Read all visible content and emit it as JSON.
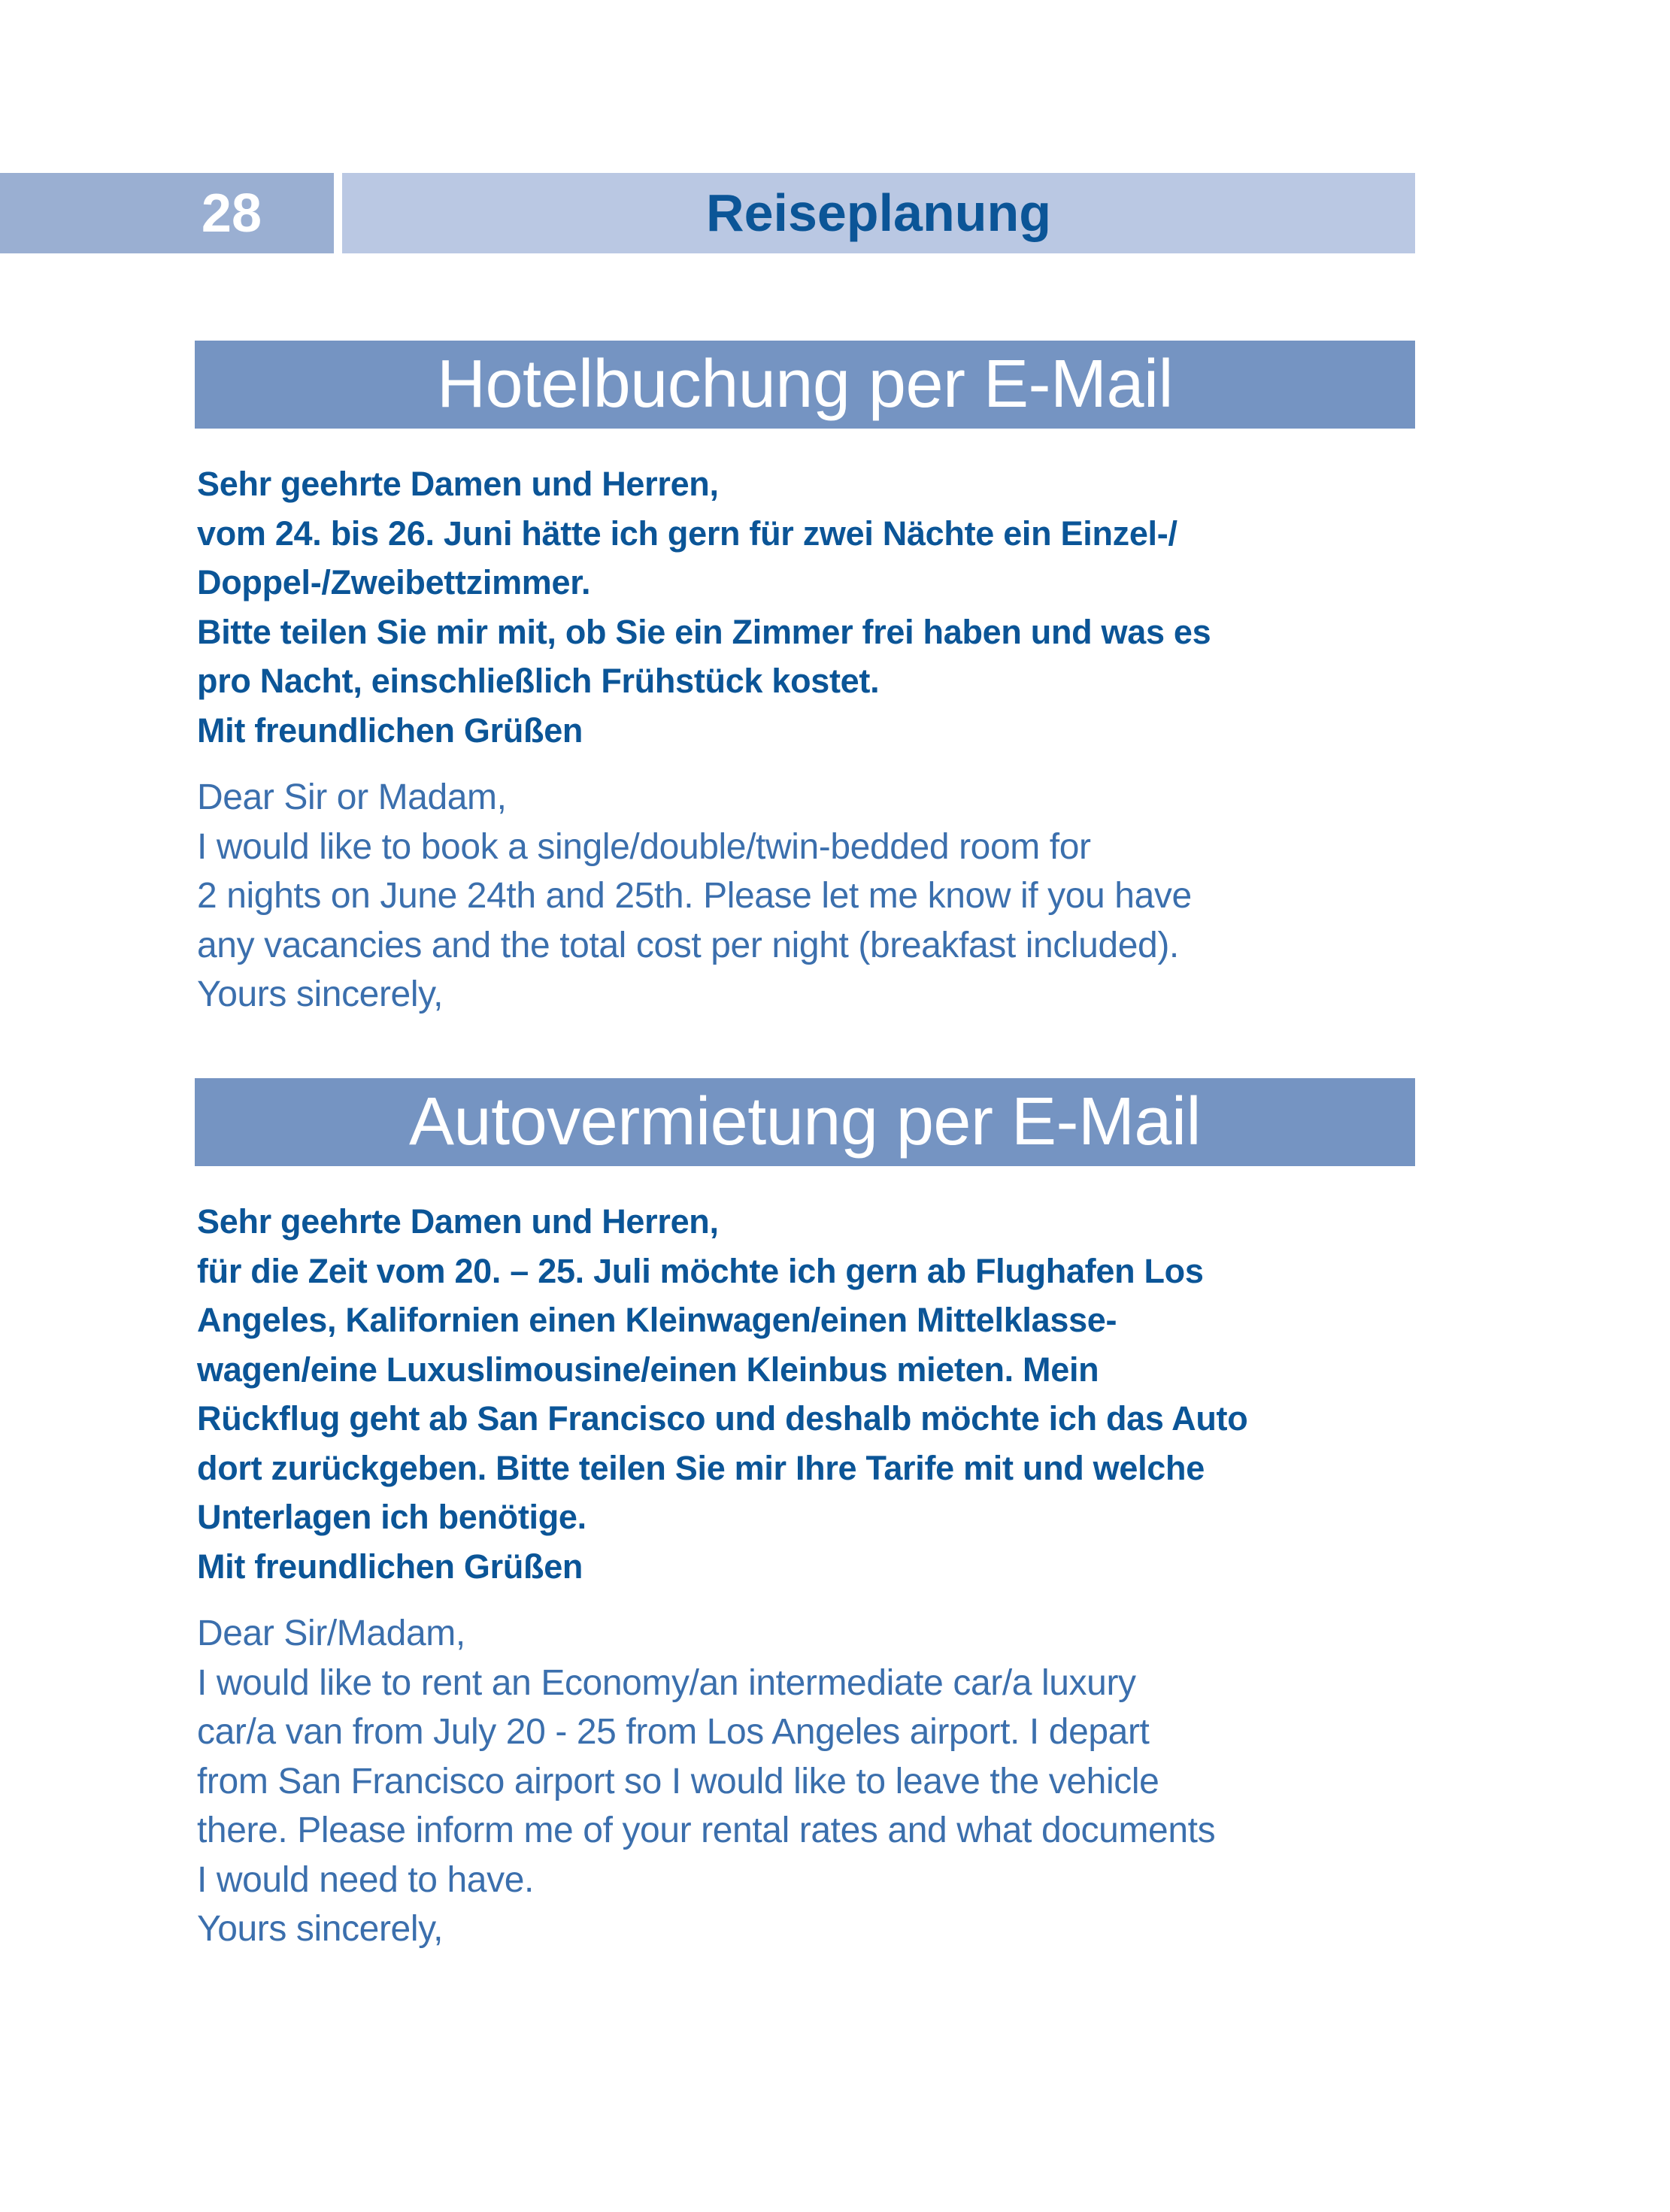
{
  "header": {
    "page_number": "28",
    "chapter": "Reiseplanung"
  },
  "colors": {
    "dark_blue_text": "#0b5597",
    "light_blue_text": "#3b6fad",
    "title_bar": "#7594c2",
    "header_light": "#bac8e3",
    "header_dark": "#9aafd2"
  },
  "sections": [
    {
      "title": "Hotelbuchung per E-Mail",
      "german": [
        "Sehr geehrte Damen und Herren,",
        "vom 24. bis 26. Juni hätte ich gern für zwei Nächte ein Einzel-/",
        "Doppel-/Zweibettzimmer.",
        "Bitte teilen Sie mir mit, ob Sie ein Zimmer frei haben und was es",
        "pro Nacht, einschließlich Frühstück kostet.",
        "Mit freundlichen Grüßen"
      ],
      "english": [
        "Dear Sir or Madam,",
        "I would like to book a single/double/twin-bedded room for",
        "2 nights on June 24th and 25th. Please let me know if you have",
        "any vacancies and the total cost per night (breakfast included).",
        "Yours sincerely,"
      ]
    },
    {
      "title": "Autovermietung per E-Mail",
      "german": [
        "Sehr geehrte Damen und Herren,",
        "für die Zeit vom 20. – 25. Juli möchte ich gern ab Flughafen Los",
        "Angeles, Kalifornien einen Kleinwagen/einen Mittelklasse-",
        "wagen/eine Luxuslimousine/einen Kleinbus mieten. Mein",
        "Rückflug geht ab San Francisco und deshalb möchte ich das Auto",
        "dort zurückgeben. Bitte teilen Sie mir Ihre Tarife mit und welche",
        "Unterlagen ich benötige.",
        "Mit freundlichen Grüßen"
      ],
      "english": [
        "Dear Sir/Madam,",
        "I would like to rent an Economy/an intermediate car/a luxury",
        "car/a van from July 20 - 25 from Los Angeles airport. I depart",
        "from San Francisco airport so I would like to leave the vehicle",
        "there. Please inform me of your rental rates and what documents",
        "I would need to have.",
        "Yours sincerely,"
      ]
    }
  ]
}
